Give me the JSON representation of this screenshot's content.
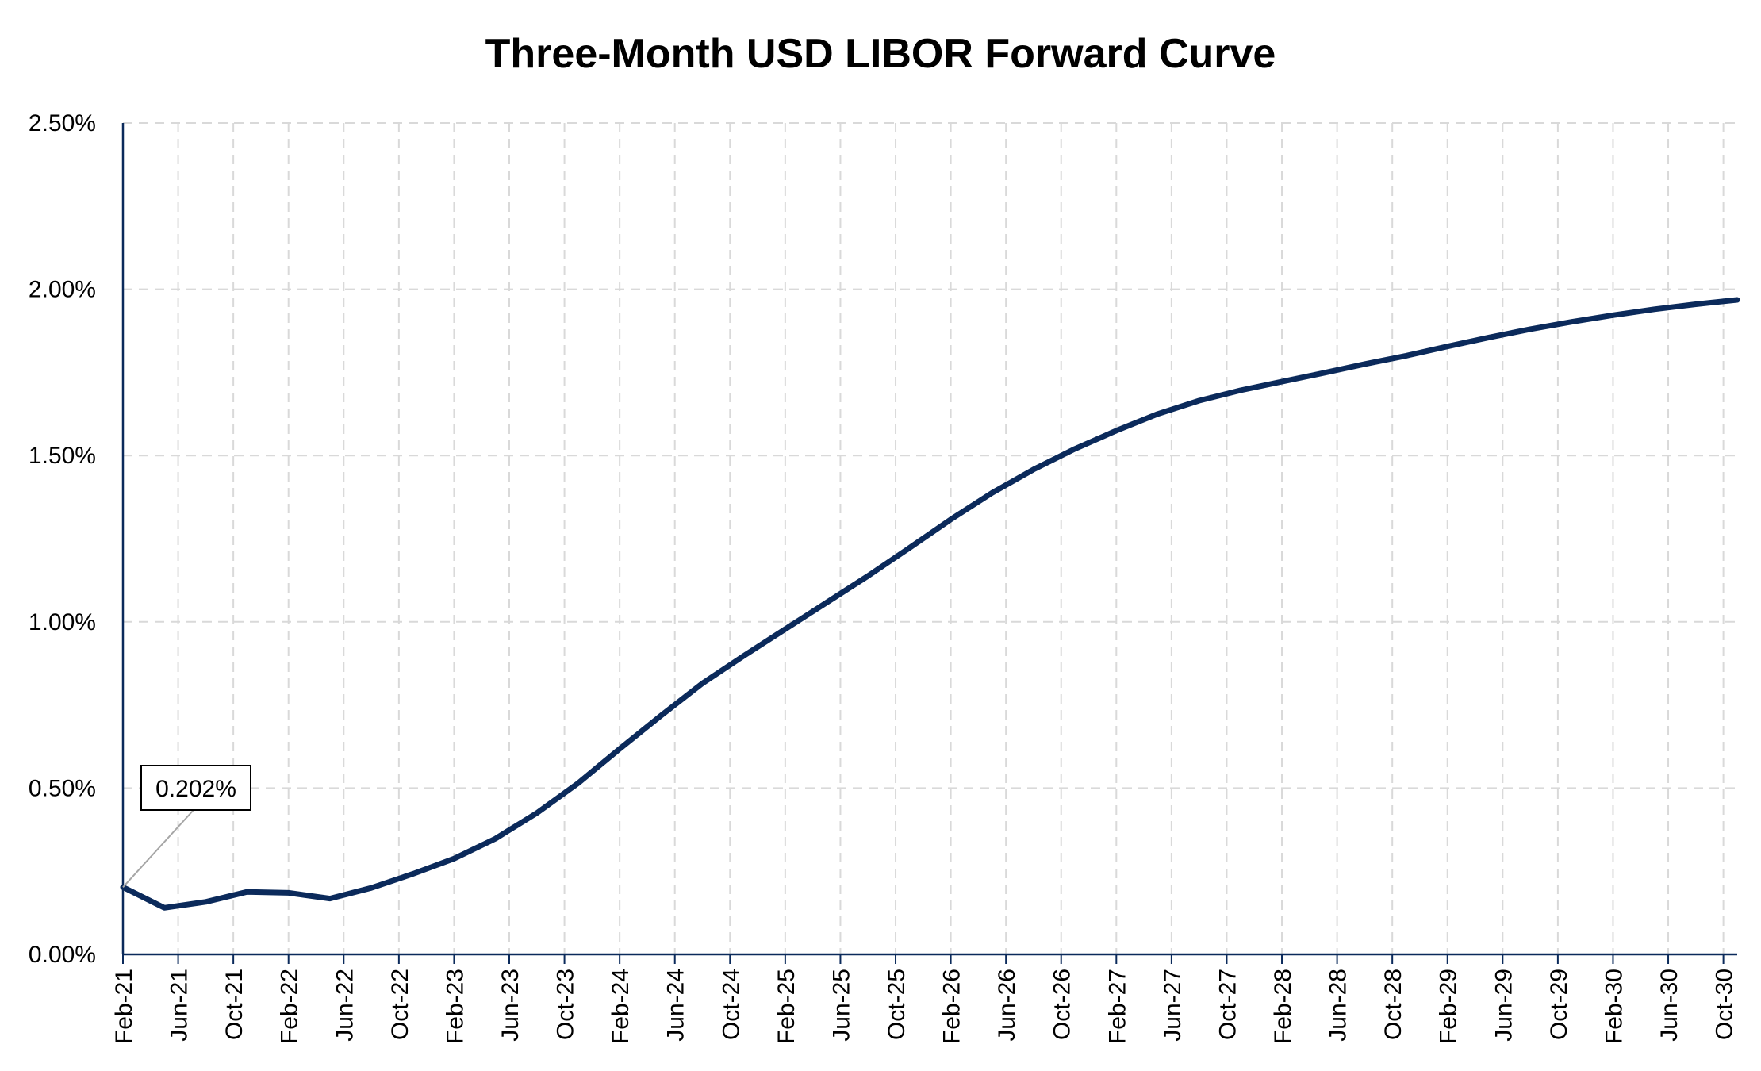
{
  "chart_data": {
    "type": "line",
    "title": "Three-Month USD LIBOR Forward Curve",
    "xlabel": "",
    "ylabel": "",
    "ylim": [
      0,
      0.025
    ],
    "yticks": [
      0,
      0.005,
      0.01,
      0.015,
      0.02,
      0.025
    ],
    "ytick_labels": [
      "0.00%",
      "0.50%",
      "1.00%",
      "1.50%",
      "2.00%",
      "2.50%"
    ],
    "x_tick_labels": [
      "Feb-21",
      "Jun-21",
      "Oct-21",
      "Feb-22",
      "Jun-22",
      "Oct-22",
      "Feb-23",
      "Jun-23",
      "Oct-23",
      "Feb-24",
      "Jun-24",
      "Oct-24",
      "Feb-25",
      "Jun-25",
      "Oct-25",
      "Feb-26",
      "Jun-26",
      "Oct-26",
      "Feb-27",
      "Jun-27",
      "Oct-27",
      "Feb-28",
      "Jun-28",
      "Oct-28",
      "Feb-29",
      "Jun-29",
      "Oct-29",
      "Feb-30",
      "Jun-30",
      "Oct-30"
    ],
    "grid": true,
    "legend": "none",
    "series": [
      {
        "color": "#0b2a5b",
        "x": [
          "Feb-21",
          "May-21",
          "Aug-21",
          "Nov-21",
          "Feb-22",
          "May-22",
          "Aug-22",
          "Nov-22",
          "Feb-23",
          "May-23",
          "Aug-23",
          "Nov-23",
          "Feb-24",
          "May-24",
          "Aug-24",
          "Nov-24",
          "Feb-25",
          "May-25",
          "Aug-25",
          "Nov-25",
          "Feb-26",
          "May-26",
          "Aug-26",
          "Nov-26",
          "Feb-27",
          "May-27",
          "Aug-27",
          "Nov-27",
          "Feb-28",
          "May-28",
          "Aug-28",
          "Nov-28",
          "Feb-29",
          "May-29",
          "Aug-29",
          "Nov-29",
          "Feb-30",
          "May-30",
          "Aug-30",
          "Nov-30"
        ],
        "values": [
          0.00202,
          0.0014,
          0.00158,
          0.00188,
          0.00185,
          0.00168,
          0.002,
          0.00242,
          0.00288,
          0.00348,
          0.00425,
          0.00515,
          0.00618,
          0.00718,
          0.00815,
          0.00898,
          0.00978,
          0.01058,
          0.01138,
          0.01222,
          0.01308,
          0.01388,
          0.01458,
          0.0152,
          0.01575,
          0.01625,
          0.01665,
          0.01696,
          0.01722,
          0.01748,
          0.01775,
          0.018,
          0.01828,
          0.01855,
          0.0188,
          0.01902,
          0.01922,
          0.0194,
          0.01955,
          0.01968
        ]
      }
    ],
    "annotations": [
      {
        "x": "Feb-21",
        "value": 0.00202,
        "text": "0.202%"
      }
    ]
  }
}
